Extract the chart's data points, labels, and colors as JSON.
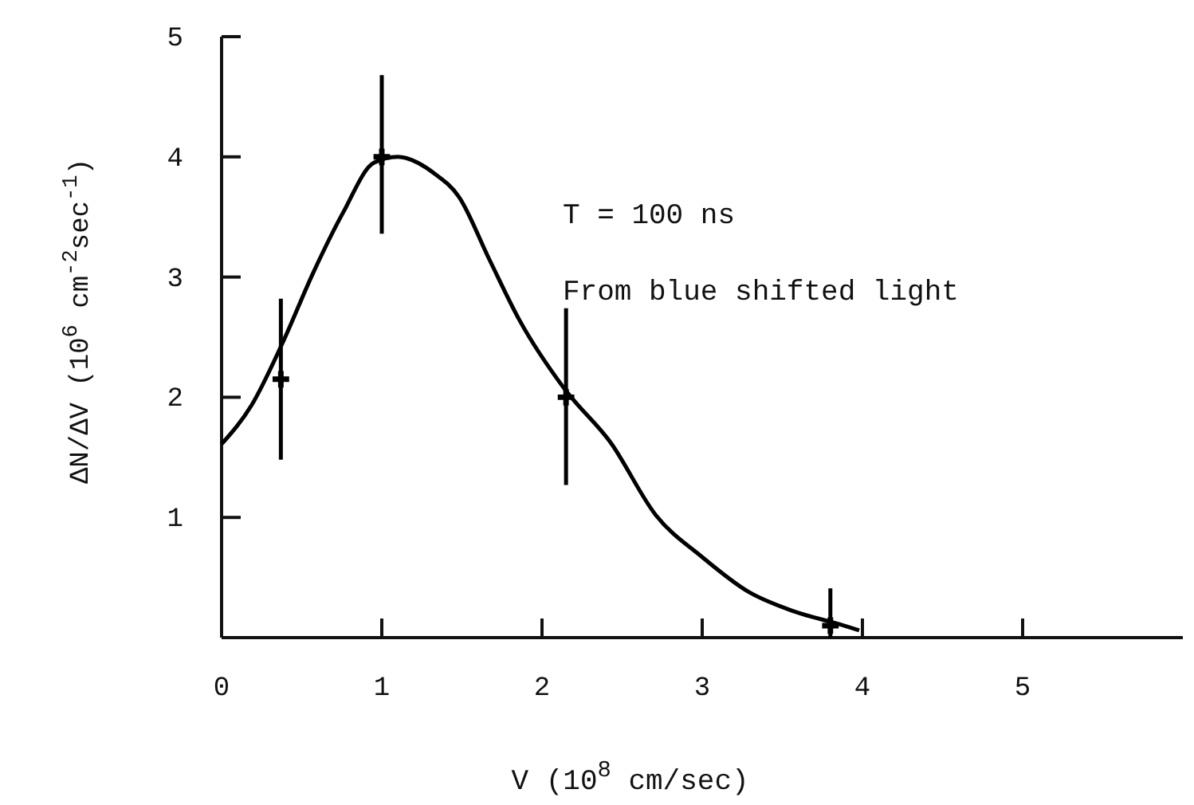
{
  "chart_data": {
    "type": "line",
    "xlabel": "V (10$^{8}$ cm/sec)",
    "ylabel": "ΔN/ΔV (10$^{6}$ cm$^{-2}$sec$^{-1}$)",
    "xlim": [
      0,
      6
    ],
    "ylim": [
      0,
      5
    ],
    "xticks": [
      0,
      1,
      2,
      3,
      4,
      5
    ],
    "yticks": [
      {
        "value": 0,
        "label": null
      },
      1,
      2,
      3,
      4,
      5
    ],
    "grid": false,
    "series": [
      {
        "type": "line",
        "color": "#000000",
        "marker": "none",
        "line_style": "solid",
        "x": [
          0,
          0.19,
          0.38,
          0.57,
          0.76,
          0.95,
          1.1,
          1.33,
          1.48,
          1.67,
          1.86,
          2.14,
          2.43,
          2.71,
          3.0,
          3.29,
          3.57,
          3.86,
          3.98
        ],
        "values": [
          1.61,
          1.94,
          2.45,
          3.03,
          3.54,
          3.95,
          4.0,
          3.86,
          3.67,
          3.15,
          2.64,
          2.07,
          1.62,
          1.02,
          0.67,
          0.38,
          0.22,
          0.11,
          0.06
        ]
      },
      {
        "type": "scatter",
        "color": "#000000",
        "marker": "cross",
        "x": [
          0.37,
          1.0,
          2.15,
          3.8
        ],
        "values": [
          2.15,
          4.0,
          2.0,
          0.1
        ],
        "errors": [
          [
            1.48,
            2.82
          ],
          [
            3.36,
            4.68
          ],
          [
            1.27,
            2.74
          ],
          [
            0,
            0.41
          ]
        ]
      }
    ],
    "annotations": [
      "T = 100 ns",
      "From blue shifted light"
    ]
  }
}
